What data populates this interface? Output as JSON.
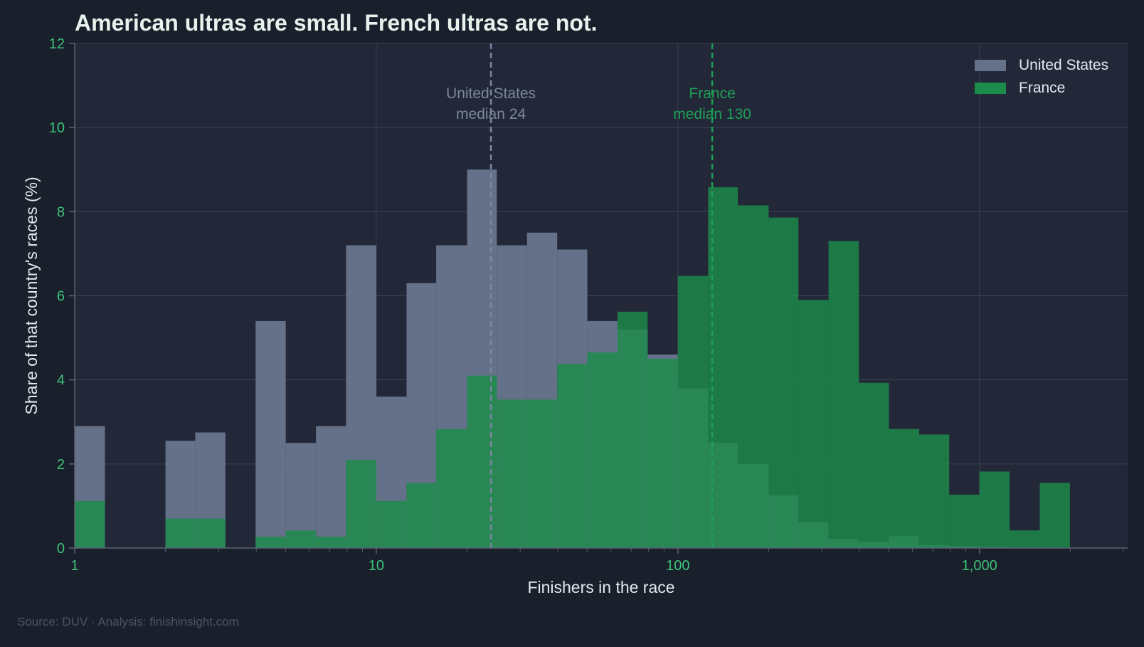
{
  "title": "American ultras are small. French ultras are not.",
  "source_note": "Source: DUV  ·  Analysis: finishinsight.com",
  "colors": {
    "background": "#1a1f2c",
    "plot_bg": "#232839",
    "us": "#647188",
    "fr": "#1c8c4b",
    "tick": "#3dc47a"
  },
  "chart_data": {
    "type": "bar",
    "title": "American ultras are small. French ultras are not.",
    "xlabel": "Finishers in the race",
    "ylabel": "Share of that country's races (%)",
    "x_scale": "log",
    "xlim": [
      1,
      3100
    ],
    "ylim": [
      0,
      12
    ],
    "x_ticks": [
      {
        "value": 1,
        "label": "1"
      },
      {
        "value": 10,
        "label": "10"
      },
      {
        "value": 100,
        "label": "100"
      },
      {
        "value": 1000,
        "label": "1,000"
      }
    ],
    "y_ticks": [
      0,
      2,
      4,
      6,
      8,
      10,
      12
    ],
    "grid": true,
    "legend_position": "top-right",
    "bin_edges": [
      1,
      1.26,
      1.58,
      2,
      2.51,
      3.16,
      3.98,
      5.01,
      6.31,
      7.94,
      10,
      12.6,
      15.8,
      20,
      25.1,
      31.6,
      39.8,
      50.1,
      63.1,
      79.4,
      100,
      126,
      158,
      200,
      251,
      316,
      398,
      501,
      631,
      794,
      1000,
      1259,
      1585,
      1995
    ],
    "series": [
      {
        "name": "United States",
        "color": "#647188",
        "values": [
          2.9,
          0,
          0,
          2.55,
          2.75,
          0,
          5.4,
          2.5,
          2.9,
          7.2,
          3.6,
          6.3,
          7.2,
          9.0,
          7.2,
          7.5,
          7.1,
          5.4,
          5.2,
          4.6,
          3.8,
          2.5,
          2.0,
          1.25,
          0.62,
          0.22,
          0.15,
          0.28,
          0.07,
          0.05,
          0.03,
          0.01,
          0.01
        ]
      },
      {
        "name": "France",
        "color": "#1c8c4b",
        "values": [
          1.12,
          0,
          0,
          0.7,
          0.7,
          0,
          0.27,
          0.42,
          0.27,
          2.1,
          1.12,
          1.55,
          2.83,
          4.1,
          3.53,
          3.53,
          4.38,
          4.65,
          5.62,
          4.5,
          6.47,
          8.58,
          8.15,
          7.86,
          5.9,
          7.3,
          3.93,
          2.83,
          2.7,
          1.27,
          1.82,
          0.42,
          1.55
        ]
      }
    ],
    "annotations": [
      {
        "series": "United States",
        "x": 24,
        "line1": "United States",
        "line2": "median 24"
      },
      {
        "series": "France",
        "x": 130,
        "line1": "France",
        "line2": "median 130"
      }
    ]
  }
}
